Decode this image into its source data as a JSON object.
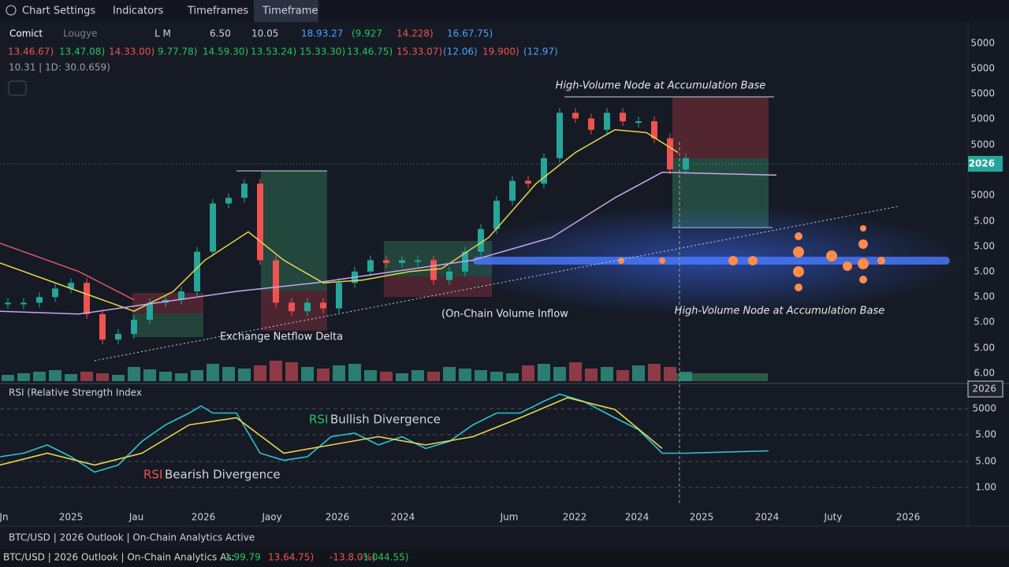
{
  "toolbar": {
    "tabs": [
      "Chart Settings",
      "Indicators",
      "Timeframes",
      "Timeframe"
    ]
  },
  "legend_row": [
    "Comict",
    "Lougye",
    "L M",
    "6.50",
    "10.05",
    "18.93.27",
    "(9.927",
    "14.228)",
    "16.67.75)"
  ],
  "values_row": [
    "13.46.67)",
    "13.47.08)",
    "14.33.00)",
    "9.77.78)",
    "14.59.30)",
    "13.53.24)",
    "15.33.30)",
    "13.46.75)",
    "15.33.07)",
    "(12.06)",
    "19.900)",
    "(12.97)"
  ],
  "info_row": "10.31 | 1D: 30.0.659)",
  "annotations": {
    "top_node": "High-Volume Node at Accumulation Base",
    "side_node": "High-Volume Node at Accumulation Base",
    "inflow": "(On-Chain Volume Inflow",
    "netflow": "Exchange Netflow Delta",
    "rsi_title": "RSI (Relative Strength Index",
    "bullish": {
      "prefix": "RSI",
      "text": "Bullish Divergence"
    },
    "bearish": {
      "prefix": "RSI",
      "text": "Bearish Divergence"
    }
  },
  "price_axis": [
    "5000",
    "5000",
    "5000",
    "5000",
    "5000",
    "2026",
    "5000",
    "5.00",
    "5.00",
    "5.00",
    "5.00",
    "5.00",
    "5.00",
    "6.00"
  ],
  "rsi_axis": [
    "2026",
    "5000",
    "5.00",
    "5.00",
    "1.00"
  ],
  "time_axis": [
    "Jn",
    "2025",
    "Jau",
    "2026",
    "Jaoy",
    "2026",
    "2024",
    "Jum",
    "2022",
    "2024",
    "2025",
    "2024",
    "Juty",
    "2026"
  ],
  "status_bar": "BTC/USD | 2026 Outlook | On-Chain Analytics Active",
  "footer": {
    "text": "BTC/USD | 2026 Outlook | On-Chain Analytics As:",
    "values": [
      "1.99.79",
      "13.64.75)",
      "-13.8.0%)",
      "-1.044.55)"
    ]
  },
  "chart_data": [
    {
      "type": "candlestick",
      "ylim": [
        0,
        100
      ],
      "xlim": [
        0,
        60
      ],
      "up_color": "#26a69a",
      "down_color": "#ef5350",
      "values": [
        21,
        21,
        23,
        26,
        28,
        17,
        8,
        10,
        15,
        21,
        22,
        25,
        39,
        56,
        58,
        63,
        36,
        21,
        18,
        21,
        19,
        28,
        32,
        36,
        35,
        36,
        36,
        29,
        32,
        39,
        47,
        57,
        64,
        63,
        72,
        88,
        86,
        82,
        88,
        85,
        85,
        79,
        68,
        72
      ],
      "series": [
        {
          "color": "#e6d84a",
          "x": [
            0,
            5,
            8.5,
            11,
            13,
            15.75,
            18,
            20.5,
            23,
            26,
            28,
            31,
            34,
            36.5,
            39,
            41,
            43
          ],
          "values": [
            35,
            25,
            18,
            25,
            36,
            46,
            36,
            28,
            29,
            32,
            33,
            44,
            63,
            74,
            82,
            81,
            74
          ]
        },
        {
          "color": "#c9a6f0",
          "x": [
            0,
            5,
            10,
            15,
            20,
            25,
            30,
            35,
            39,
            42,
            49.25
          ],
          "values": [
            18,
            17,
            21,
            25,
            28,
            32,
            36,
            44,
            58,
            67,
            66
          ]
        },
        {
          "color": "#e0566b",
          "x": [
            0,
            5,
            8.5
          ],
          "values": [
            42,
            32,
            22
          ]
        }
      ]
    },
    {
      "type": "bar",
      "ylim": [
        0,
        30
      ],
      "values": [
        8,
        10,
        12,
        14,
        9,
        12,
        10,
        8,
        18,
        15,
        12,
        10,
        14,
        22,
        18,
        16,
        20,
        26,
        24,
        18,
        16,
        20,
        22,
        14,
        12,
        10,
        14,
        12,
        18,
        16,
        14,
        12,
        10,
        20,
        22,
        18,
        24,
        16,
        18,
        14,
        20,
        22,
        18,
        12
      ]
    },
    {
      "type": "line",
      "ylim": [
        0,
        100
      ],
      "xlim": [
        0,
        60
      ],
      "series": [
        {
          "color": "#2bc4d6",
          "x": [
            0,
            1.5,
            3,
            4.5,
            6,
            7.5,
            9,
            10.5,
            12,
            12.75,
            13.5,
            15,
            16.5,
            18,
            19.5,
            21,
            22.5,
            24,
            25.5,
            27,
            28.5,
            30,
            31.5,
            33,
            34.5,
            35.5,
            37,
            39,
            40.5,
            42,
            43.5,
            48.75
          ],
          "values": [
            40,
            43,
            50,
            40,
            27,
            33,
            53,
            67,
            77,
            83,
            77,
            77,
            43,
            37,
            40,
            57,
            60,
            50,
            57,
            47,
            53,
            67,
            77,
            77,
            87,
            93,
            87,
            73,
            63,
            43,
            43,
            45
          ]
        },
        {
          "color": "#e6d84a",
          "x": [
            0,
            3,
            6,
            9,
            12,
            15,
            18,
            21,
            24,
            27,
            30,
            33,
            36,
            39,
            42
          ],
          "values": [
            33,
            43,
            33,
            43,
            67,
            73,
            43,
            50,
            57,
            50,
            57,
            73,
            90,
            80,
            47
          ]
        }
      ]
    }
  ]
}
